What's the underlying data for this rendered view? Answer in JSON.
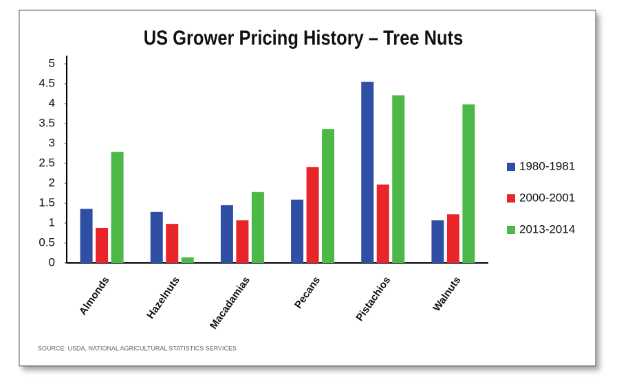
{
  "chart_data": {
    "type": "bar",
    "title": "US Grower Pricing History – Tree Nuts",
    "source": "SOURCE: USDA, NATIONAL AGRICULTURAL STATISTICS SERVICES",
    "categories": [
      "Almonds",
      "Hazelnuts",
      "Macadamias",
      "Pecans",
      "Pistachios",
      "Walnuts"
    ],
    "series": [
      {
        "name": "1980-1981",
        "color": "#2e4fa3",
        "values": [
          1.36,
          1.28,
          1.45,
          1.59,
          4.55,
          1.07
        ]
      },
      {
        "name": "2000-2001",
        "color": "#e8262a",
        "values": [
          0.88,
          0.98,
          1.07,
          2.41,
          1.97,
          1.22
        ]
      },
      {
        "name": "2013-2014",
        "color": "#4cb848",
        "values": [
          2.79,
          0.14,
          1.78,
          3.36,
          4.21,
          3.98
        ]
      }
    ],
    "ylim": [
      0,
      5
    ],
    "yticks": [
      0,
      0.5,
      1,
      1.5,
      2,
      2.5,
      3,
      3.5,
      4,
      4.5,
      5
    ],
    "grid": false,
    "legend": "right"
  }
}
